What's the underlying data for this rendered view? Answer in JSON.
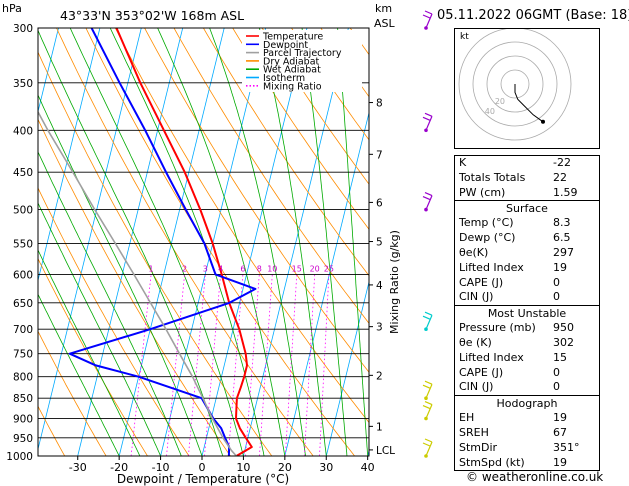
{
  "header": {
    "hpa_label": "hPa",
    "location": "43°33'N  353°02'W  168m  ASL",
    "km_label": "km",
    "asl_label": "ASL",
    "datetime": "05.11.2022  06GMT  (Base: 18)"
  },
  "chart_data": {
    "type": "skew-t log-p",
    "xlabel": "Dewpoint / Temperature (°C)",
    "ylabel_right": "Mixing Ratio (g/kg)",
    "pressure_levels": [
      300,
      350,
      400,
      450,
      500,
      550,
      600,
      650,
      700,
      750,
      800,
      850,
      900,
      950,
      1000
    ],
    "temperature_ticks": [
      -30,
      -20,
      -10,
      0,
      10,
      20,
      30,
      40
    ],
    "height_km_ticks": [
      {
        "label": "8",
        "p": 370
      },
      {
        "label": "7",
        "p": 428
      },
      {
        "label": "6",
        "p": 490
      },
      {
        "label": "5",
        "p": 547
      },
      {
        "label": "4",
        "p": 618
      },
      {
        "label": "3",
        "p": 695
      },
      {
        "label": "2",
        "p": 797
      },
      {
        "label": "1",
        "p": 920
      },
      {
        "label": "LCL",
        "p": 983
      }
    ],
    "mixing_ratio_labels": [
      "1",
      "2",
      "3",
      "4",
      "6",
      "8",
      "10",
      "15",
      "20",
      "25"
    ],
    "mixing_ratio_values": [
      1,
      2,
      3,
      4,
      6,
      8,
      10,
      15,
      20,
      25
    ],
    "legend": [
      {
        "name": "Temperature",
        "color": "#ff0000"
      },
      {
        "name": "Dewpoint",
        "color": "#0000ff"
      },
      {
        "name": "Parcel Trajectory",
        "color": "#a0a0a0"
      },
      {
        "name": "Dry Adiabat",
        "color": "#ff8c00"
      },
      {
        "name": "Wet Adiabat",
        "color": "#00aa00"
      },
      {
        "name": "Isotherm",
        "color": "#00aaff"
      },
      {
        "name": "Mixing Ratio",
        "color": "#ff00ff"
      }
    ],
    "series": [
      {
        "name": "Temperature",
        "color": "#ff0000",
        "points": [
          [
            1000,
            8.3
          ],
          [
            975,
            11.5
          ],
          [
            950,
            9.5
          ],
          [
            925,
            7.5
          ],
          [
            900,
            6.0
          ],
          [
            875,
            5.5
          ],
          [
            850,
            5.0
          ],
          [
            825,
            5.3
          ],
          [
            800,
            5.5
          ],
          [
            775,
            5.5
          ],
          [
            750,
            4.5
          ],
          [
            700,
            1.5
          ],
          [
            650,
            -2.5
          ],
          [
            600,
            -6.0
          ],
          [
            550,
            -10.0
          ],
          [
            500,
            -15.0
          ],
          [
            450,
            -21.0
          ],
          [
            400,
            -28.5
          ],
          [
            350,
            -37.0
          ],
          [
            300,
            -46.0
          ]
        ]
      },
      {
        "name": "Dewpoint",
        "color": "#0000ff",
        "points": [
          [
            1000,
            6.5
          ],
          [
            975,
            6.0
          ],
          [
            950,
            4.5
          ],
          [
            925,
            3.0
          ],
          [
            900,
            0.5
          ],
          [
            850,
            -3.5
          ],
          [
            800,
            -20.0
          ],
          [
            775,
            -31.0
          ],
          [
            750,
            -38.0
          ],
          [
            700,
            -20.0
          ],
          [
            650,
            -2.5
          ],
          [
            625,
            3.0
          ],
          [
            600,
            -7.5
          ],
          [
            550,
            -12.0
          ],
          [
            500,
            -18.5
          ],
          [
            450,
            -25.5
          ],
          [
            400,
            -33.0
          ],
          [
            350,
            -42.0
          ],
          [
            300,
            -52.0
          ]
        ]
      },
      {
        "name": "Parcel Trajectory",
        "color": "#a0a0a0",
        "points": [
          [
            1000,
            8.3
          ],
          [
            985,
            6.8
          ],
          [
            950,
            4.0
          ],
          [
            900,
            0.3
          ],
          [
            850,
            -3.2
          ],
          [
            800,
            -7.0
          ],
          [
            750,
            -11.5
          ],
          [
            700,
            -16.2
          ],
          [
            650,
            -21.5
          ],
          [
            600,
            -27.2
          ],
          [
            550,
            -33.5
          ],
          [
            500,
            -40.5
          ],
          [
            450,
            -48.0
          ],
          [
            400,
            -56.5
          ],
          [
            350,
            -65.5
          ],
          [
            300,
            -76.0
          ]
        ]
      }
    ],
    "wind_barbs": [
      {
        "p": 300,
        "color": "#9900cc"
      },
      {
        "p": 400,
        "color": "#9900cc"
      },
      {
        "p": 500,
        "color": "#9900cc"
      },
      {
        "p": 700,
        "color": "#00cccc"
      },
      {
        "p": 850,
        "color": "#cccc00"
      },
      {
        "p": 900,
        "color": "#cccc00"
      },
      {
        "p": 1000,
        "color": "#cccc00"
      }
    ]
  },
  "hodograph": {
    "unit_label": "kt",
    "ring_labels": [
      "20",
      "40"
    ],
    "trace": [
      [
        0,
        0
      ],
      [
        0,
        -6
      ],
      [
        2,
        -11
      ],
      [
        6,
        -15
      ],
      [
        13,
        -22
      ],
      [
        20,
        -27
      ]
    ]
  },
  "indices": {
    "rows": [
      {
        "label": "K",
        "value": "-22"
      },
      {
        "label": "Totals Totals",
        "value": "22"
      },
      {
        "label": "PW (cm)",
        "value": "1.59"
      }
    ],
    "surface": {
      "title": "Surface",
      "rows": [
        {
          "label": "Temp (°C)",
          "value": "8.3"
        },
        {
          "label": "Dewp (°C)",
          "value": "6.5"
        },
        {
          "label": "θe(K)",
          "value": "297"
        },
        {
          "label": "Lifted Index",
          "value": "19"
        },
        {
          "label": "CAPE (J)",
          "value": "0"
        },
        {
          "label": "CIN (J)",
          "value": "0"
        }
      ]
    },
    "most_unstable": {
      "title": "Most Unstable",
      "rows": [
        {
          "label": "Pressure (mb)",
          "value": "950"
        },
        {
          "label": "θe (K)",
          "value": "302"
        },
        {
          "label": "Lifted Index",
          "value": "15"
        },
        {
          "label": "CAPE (J)",
          "value": "0"
        },
        {
          "label": "CIN (J)",
          "value": "0"
        }
      ]
    },
    "hodograph_box": {
      "title": "Hodograph",
      "rows": [
        {
          "label": "EH",
          "value": "19"
        },
        {
          "label": "SREH",
          "value": "67"
        },
        {
          "label": "StmDir",
          "value": "351°"
        },
        {
          "label": "StmSpd (kt)",
          "value": "19"
        }
      ]
    }
  },
  "copyright": "© weatheronline.co.uk"
}
